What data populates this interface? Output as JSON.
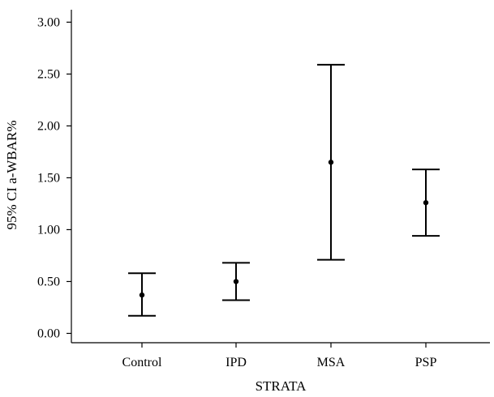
{
  "chart_data": {
    "type": "error_bar",
    "title": "",
    "xlabel": "STRATA",
    "ylabel": "95% CI a-WBAR%",
    "categories": [
      "Control",
      "IPD",
      "MSA",
      "PSP"
    ],
    "series": [
      {
        "mean": [
          0.37,
          0.5,
          1.65,
          1.26
        ],
        "lower": [
          0.17,
          0.32,
          0.71,
          0.94
        ],
        "upper": [
          0.58,
          0.68,
          2.59,
          1.58
        ]
      }
    ],
    "ylim": [
      -0.09,
      3.12
    ],
    "yticks": [
      0.0,
      0.5,
      1.0,
      1.5,
      2.0,
      2.5,
      3.0
    ],
    "ytick_labels": [
      "0.00",
      "0.50",
      "1.00",
      "1.50",
      "2.00",
      "2.50",
      "3.00"
    ],
    "grid": false,
    "legend": "none"
  }
}
